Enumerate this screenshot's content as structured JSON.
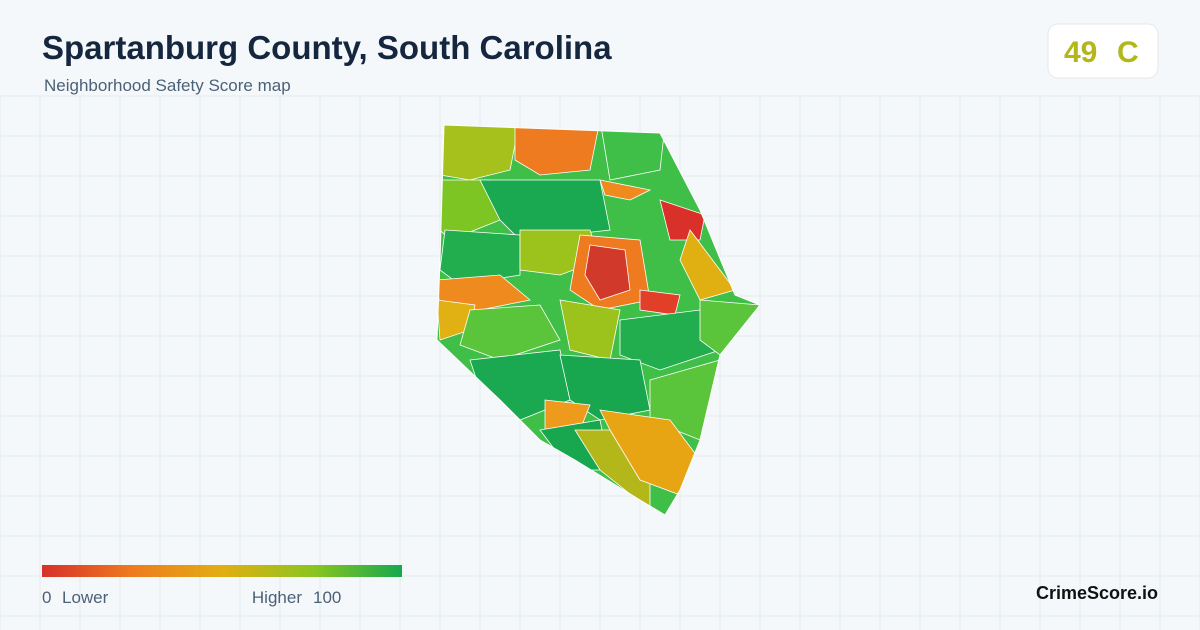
{
  "header": {
    "title": "Spartanburg County, South Carolina",
    "subtitle": "Neighborhood Safety Score map"
  },
  "score": {
    "value": 49,
    "grade": "C"
  },
  "legend": {
    "min": 0,
    "min_label": "Lower",
    "max_label": "Higher",
    "max": 100
  },
  "brand": "CrimeScore.io"
}
